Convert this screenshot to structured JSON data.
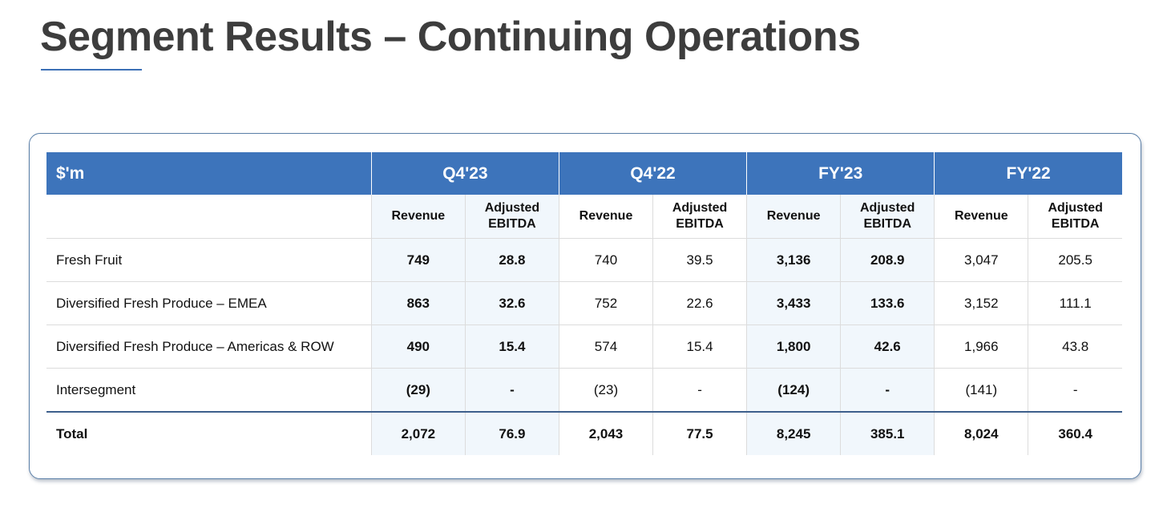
{
  "title": "Segment Results – Continuing Operations",
  "table": {
    "unit_label": "$'m",
    "periods": [
      "Q4'23",
      "Q4'22",
      "FY'23",
      "FY'22"
    ],
    "metrics": [
      "Revenue",
      "Adjusted\nEBITDA"
    ],
    "rows": [
      {
        "label": "Fresh Fruit",
        "values": [
          "749",
          "28.8",
          "740",
          "39.5",
          "3,136",
          "208.9",
          "3,047",
          "205.5"
        ]
      },
      {
        "label": "Diversified Fresh Produce – EMEA",
        "values": [
          "863",
          "32.6",
          "752",
          "22.6",
          "3,433",
          "133.6",
          "3,152",
          "111.1"
        ]
      },
      {
        "label": "Diversified Fresh Produce – Americas & ROW",
        "values": [
          "490",
          "15.4",
          "574",
          "15.4",
          "1,800",
          "42.6",
          "1,966",
          "43.8"
        ]
      },
      {
        "label": "Intersegment",
        "values": [
          "(29)",
          "-",
          "(23)",
          "-",
          "(124)",
          "-",
          "(141)",
          "-"
        ]
      }
    ],
    "total": {
      "label": "Total",
      "values": [
        "2,072",
        "76.9",
        "2,043",
        "77.5",
        "8,245",
        "385.1",
        "8,024",
        "360.4"
      ]
    }
  },
  "colors": {
    "header_bg": "#3d74bb",
    "highlight_bg": "#f1f7fc",
    "title": "#3d3d3d"
  }
}
